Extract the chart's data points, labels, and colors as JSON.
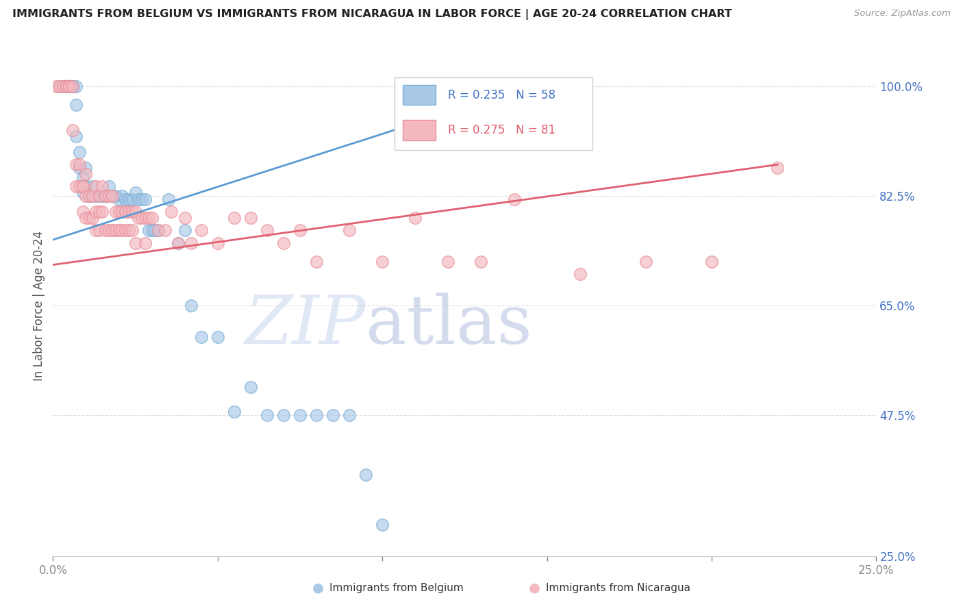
{
  "title": "IMMIGRANTS FROM BELGIUM VS IMMIGRANTS FROM NICARAGUA IN LABOR FORCE | AGE 20-24 CORRELATION CHART",
  "source": "Source: ZipAtlas.com",
  "ylabel_left": "In Labor Force | Age 20-24",
  "x_min": 0.0,
  "x_max": 0.25,
  "y_min": 0.25,
  "y_max": 1.05,
  "x_ticks": [
    0.0,
    0.05,
    0.1,
    0.15,
    0.2,
    0.25
  ],
  "x_tick_labels": [
    "0.0%",
    "",
    "",
    "",
    "",
    "25.0%"
  ],
  "y_ticks": [
    1.0,
    0.825,
    0.65,
    0.475,
    0.25
  ],
  "y_tick_labels": [
    "100.0%",
    "82.5%",
    "65.0%",
    "47.5%",
    "25.0%"
  ],
  "belgium_color": "#a8c8e8",
  "nicaragua_color": "#f4b8c0",
  "belgium_edge_color": "#7bafd4",
  "nicaragua_edge_color": "#e8909a",
  "belgium_line_color": "#5b9bd5",
  "nicaragua_line_color": "#e06070",
  "legend_r_belgium": "R = 0.235",
  "legend_n_belgium": "N = 58",
  "legend_r_nicaragua": "R = 0.275",
  "legend_n_nicaragua": "N = 81",
  "belgium_x": [
    0.002,
    0.003,
    0.004,
    0.004,
    0.005,
    0.005,
    0.006,
    0.006,
    0.006,
    0.007,
    0.007,
    0.007,
    0.008,
    0.008,
    0.009,
    0.009,
    0.01,
    0.01,
    0.011,
    0.011,
    0.012,
    0.012,
    0.013,
    0.014,
    0.015,
    0.016,
    0.017,
    0.018,
    0.019,
    0.02,
    0.021,
    0.022,
    0.023,
    0.024,
    0.025,
    0.026,
    0.027,
    0.028,
    0.029,
    0.03,
    0.031,
    0.032,
    0.035,
    0.038,
    0.04,
    0.042,
    0.045,
    0.05,
    0.055,
    0.06,
    0.065,
    0.07,
    0.075,
    0.08,
    0.085,
    0.09,
    0.095,
    0.1
  ],
  "belgium_y": [
    1.0,
    1.0,
    1.0,
    1.0,
    1.0,
    1.0,
    1.0,
    1.0,
    1.0,
    1.0,
    0.97,
    0.92,
    0.895,
    0.87,
    0.855,
    0.83,
    0.84,
    0.87,
    0.825,
    0.825,
    0.825,
    0.84,
    0.825,
    0.825,
    0.825,
    0.825,
    0.84,
    0.825,
    0.825,
    0.82,
    0.825,
    0.82,
    0.82,
    0.82,
    0.83,
    0.82,
    0.82,
    0.82,
    0.77,
    0.77,
    0.77,
    0.77,
    0.82,
    0.75,
    0.77,
    0.65,
    0.6,
    0.6,
    0.48,
    0.52,
    0.475,
    0.475,
    0.475,
    0.475,
    0.475,
    0.475,
    0.38,
    0.3
  ],
  "nicaragua_x": [
    0.001,
    0.002,
    0.003,
    0.004,
    0.004,
    0.005,
    0.005,
    0.006,
    0.006,
    0.007,
    0.007,
    0.008,
    0.008,
    0.009,
    0.009,
    0.009,
    0.01,
    0.01,
    0.01,
    0.011,
    0.011,
    0.012,
    0.012,
    0.013,
    0.013,
    0.013,
    0.014,
    0.014,
    0.014,
    0.015,
    0.015,
    0.016,
    0.016,
    0.017,
    0.017,
    0.018,
    0.018,
    0.019,
    0.019,
    0.02,
    0.02,
    0.021,
    0.021,
    0.022,
    0.022,
    0.023,
    0.023,
    0.024,
    0.024,
    0.025,
    0.025,
    0.026,
    0.027,
    0.028,
    0.028,
    0.029,
    0.03,
    0.032,
    0.034,
    0.036,
    0.038,
    0.04,
    0.042,
    0.045,
    0.05,
    0.055,
    0.06,
    0.065,
    0.07,
    0.075,
    0.08,
    0.09,
    0.1,
    0.11,
    0.12,
    0.13,
    0.14,
    0.16,
    0.18,
    0.2,
    0.22
  ],
  "nicaragua_y": [
    1.0,
    1.0,
    1.0,
    1.0,
    1.0,
    1.0,
    1.0,
    1.0,
    0.93,
    0.875,
    0.84,
    0.875,
    0.84,
    0.84,
    0.84,
    0.8,
    0.86,
    0.825,
    0.79,
    0.825,
    0.79,
    0.825,
    0.79,
    0.84,
    0.8,
    0.77,
    0.825,
    0.8,
    0.77,
    0.84,
    0.8,
    0.825,
    0.77,
    0.825,
    0.77,
    0.825,
    0.77,
    0.8,
    0.77,
    0.8,
    0.77,
    0.8,
    0.77,
    0.8,
    0.77,
    0.8,
    0.77,
    0.8,
    0.77,
    0.8,
    0.75,
    0.79,
    0.79,
    0.79,
    0.75,
    0.79,
    0.79,
    0.77,
    0.77,
    0.8,
    0.75,
    0.79,
    0.75,
    0.77,
    0.75,
    0.79,
    0.79,
    0.77,
    0.75,
    0.77,
    0.72,
    0.77,
    0.72,
    0.79,
    0.72,
    0.72,
    0.82,
    0.7,
    0.72,
    0.72,
    0.87
  ],
  "belgium_trend_x": [
    0.0,
    0.145
  ],
  "belgium_trend_y": [
    0.755,
    1.0
  ],
  "nicaragua_trend_x": [
    0.0,
    0.22
  ],
  "nicaragua_trend_y": [
    0.715,
    0.875
  ],
  "grid_color": "#dddddd",
  "spine_color": "#cccccc"
}
